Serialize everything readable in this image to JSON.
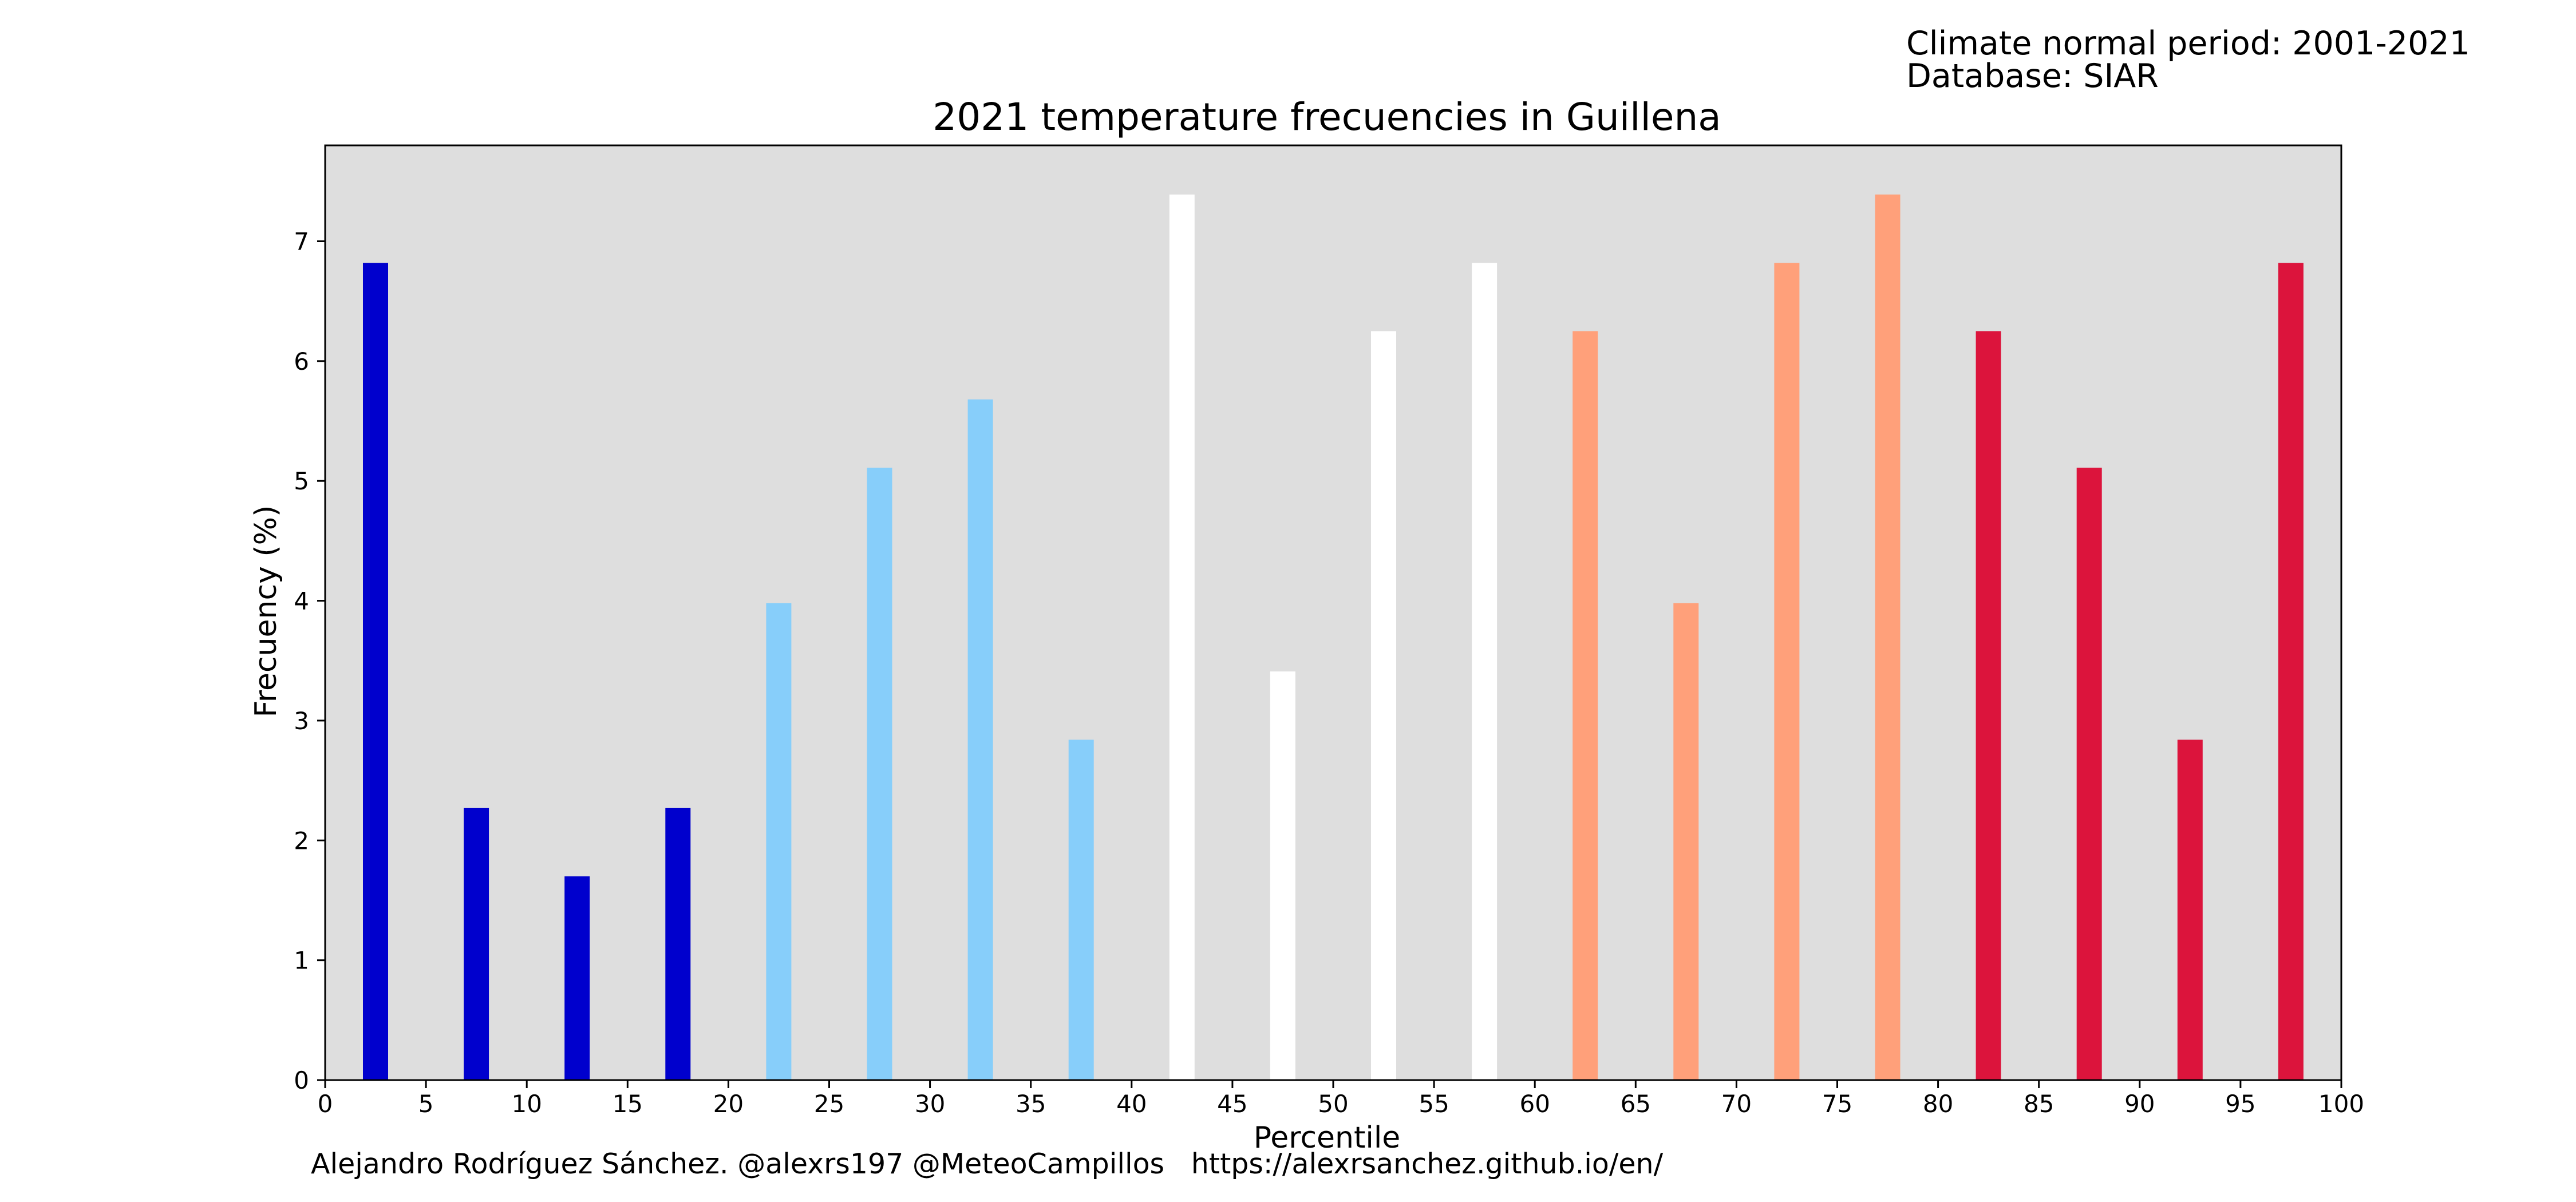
{
  "header": {
    "climate_normal": "Climate normal period: 2001-2021",
    "database": "Database: SIAR"
  },
  "credit": "Alejandro Rodríguez Sánchez. @alexrs197 @MeteoCampillos   https://alexrsanchez.github.io/en/",
  "chart_data": {
    "type": "bar",
    "title": "2021 temperature frecuencies in Guillena",
    "xlabel": "Percentile",
    "ylabel": "Frecuency (%)",
    "xlim": [
      0,
      100
    ],
    "ylim": [
      0,
      7.8
    ],
    "xticks": [
      0,
      5,
      10,
      15,
      20,
      25,
      30,
      35,
      40,
      45,
      50,
      55,
      60,
      65,
      70,
      75,
      80,
      85,
      90,
      95,
      100
    ],
    "yticks": [
      0,
      1,
      2,
      3,
      4,
      5,
      6,
      7
    ],
    "bar_width": 1.25,
    "plot_background": "#dedede",
    "grid": false,
    "x": [
      2.5,
      7.5,
      12.5,
      17.5,
      22.5,
      27.5,
      32.5,
      37.5,
      42.5,
      47.5,
      52.5,
      57.5,
      62.5,
      67.5,
      72.5,
      77.5,
      82.5,
      87.5,
      92.5,
      97.5
    ],
    "values": [
      6.82,
      2.27,
      1.7,
      2.27,
      3.98,
      5.11,
      5.68,
      2.84,
      7.39,
      3.41,
      6.25,
      6.82,
      6.25,
      3.98,
      6.82,
      7.39,
      6.25,
      5.11,
      2.84,
      6.82
    ],
    "colors": [
      "#0000cd",
      "#0000cd",
      "#0000cd",
      "#0000cd",
      "#87cefa",
      "#87cefa",
      "#87cefa",
      "#87cefa",
      "#ffffff",
      "#ffffff",
      "#ffffff",
      "#ffffff",
      "#ffa07a",
      "#ffa07a",
      "#ffa07a",
      "#ffa07a",
      "#dc143c",
      "#dc143c",
      "#dc143c",
      "#dc143c"
    ]
  }
}
